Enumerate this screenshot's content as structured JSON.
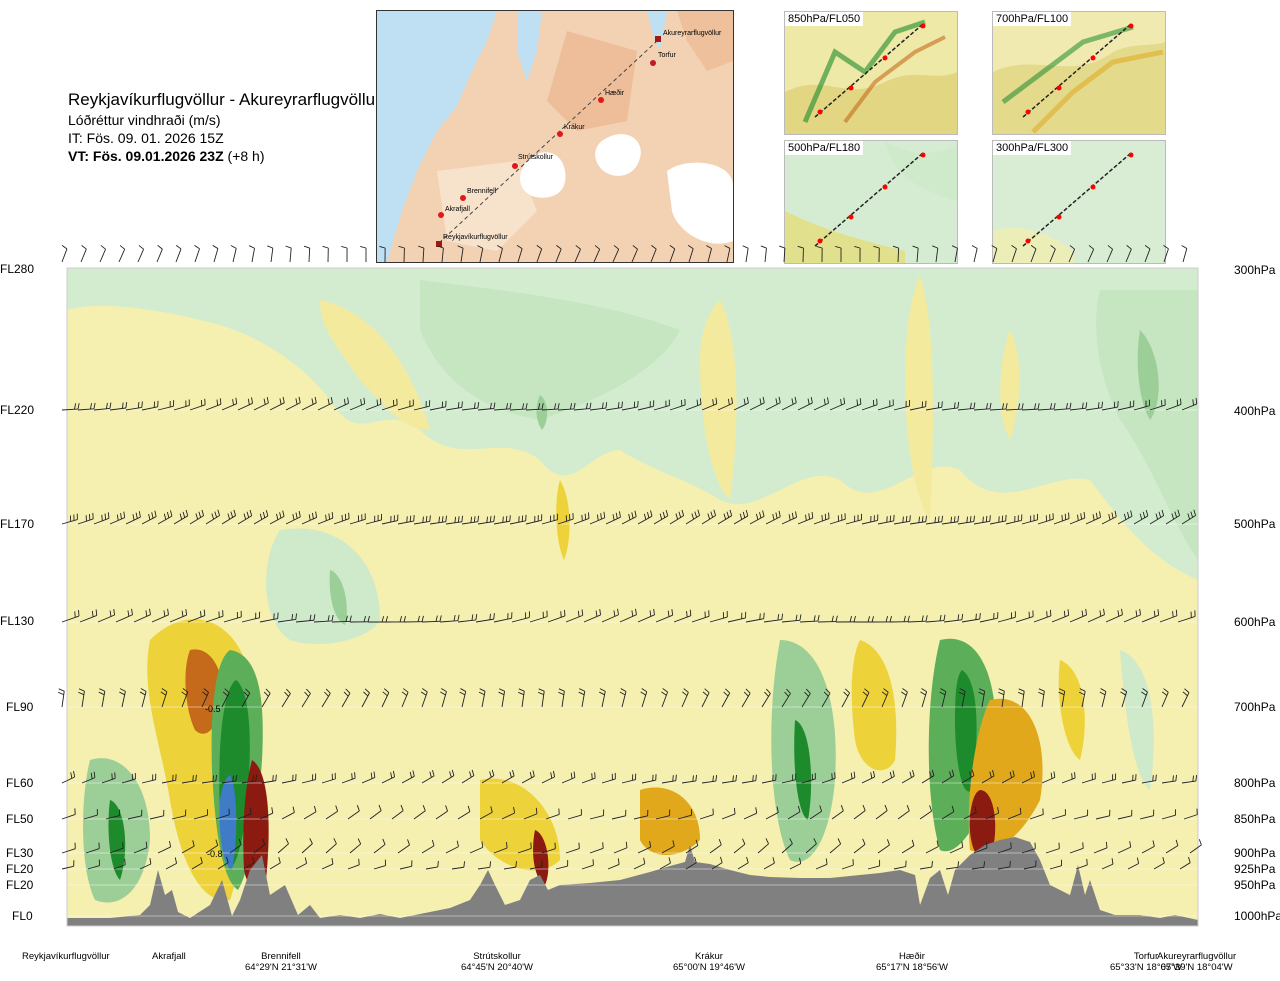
{
  "title": {
    "route": "Reykjavíkurflugvöllur - Akureyrarflugvöllur",
    "variable": "Lóðréttur vindhraði (m/s)",
    "it": "IT: Fös. 09. 01. 2026 15Z",
    "vt": "VT: Fös. 09.01.2026 23Z",
    "vt_offset": "(+8 h)"
  },
  "map": {
    "points": [
      "Akureyrarflugvöllur",
      "Torfur",
      "Hæðir",
      "Krákur",
      "Strútskollur",
      "Brennifell",
      "Akrafjall",
      "Reykjavíkurflugvöllur"
    ]
  },
  "thumbnails": [
    "850hPa/FL050",
    "700hPa/FL100",
    "500hPa/FL180",
    "300hPa/FL300"
  ],
  "colors": {
    "strong_down": "#8b1a10",
    "down_3": "#c46a1a",
    "down_2": "#e0a81a",
    "down_1": "#eed23a",
    "down_0": "#f4eeaa",
    "neutral": "#fbfbe6",
    "up_0": "#cfe9cb",
    "up_1": "#9ccf97",
    "up_2": "#5cae59",
    "up_3": "#1d8a2c",
    "strong_up": "#3f7bc6",
    "terrain": "#808080"
  },
  "chart_data": {
    "type": "heatmap",
    "title": "Reykjavíkurflugvöllur - Akureyrarflugvöllur",
    "quantity": "Lóðréttur vindhraði (m/s)",
    "y_left_ticks": [
      "FL280",
      "FL220",
      "FL170",
      "FL130",
      "FL90",
      "FL60",
      "FL50",
      "FL30",
      "FL20",
      "FL20",
      "FL0"
    ],
    "y_right_ticks": [
      "300hPa",
      "400hPa",
      "500hPa",
      "600hPa",
      "700hPa",
      "800hPa",
      "850hPa",
      "900hPa",
      "925hPa",
      "950hPa",
      "1000hPa"
    ],
    "x_points": [
      {
        "name": "Reykjavíkurflugvöllur",
        "coord": ""
      },
      {
        "name": "Akrafjall",
        "coord": ""
      },
      {
        "name": "Brennifell",
        "coord": "64°29'N 21°31'W"
      },
      {
        "name": "Strútskollur",
        "coord": "64°45'N 20°40'W"
      },
      {
        "name": "Krákur",
        "coord": "65°00'N 19°46'W"
      },
      {
        "name": "Hæðir",
        "coord": "65°17'N 18°56'W"
      },
      {
        "name": "Torfur",
        "coord": "65°33'N 18°07'W"
      },
      {
        "name": "Akureyrarflugvöllur",
        "coord": "65°39'N 18°04'W"
      }
    ],
    "annotations": [
      "-0.5",
      "-0.8"
    ],
    "wind_barb_levels": [
      "FL220",
      "FL170",
      "FL130",
      "FL90",
      "FL60",
      "FL50",
      "FL30",
      "FL20"
    ],
    "grid": true
  }
}
